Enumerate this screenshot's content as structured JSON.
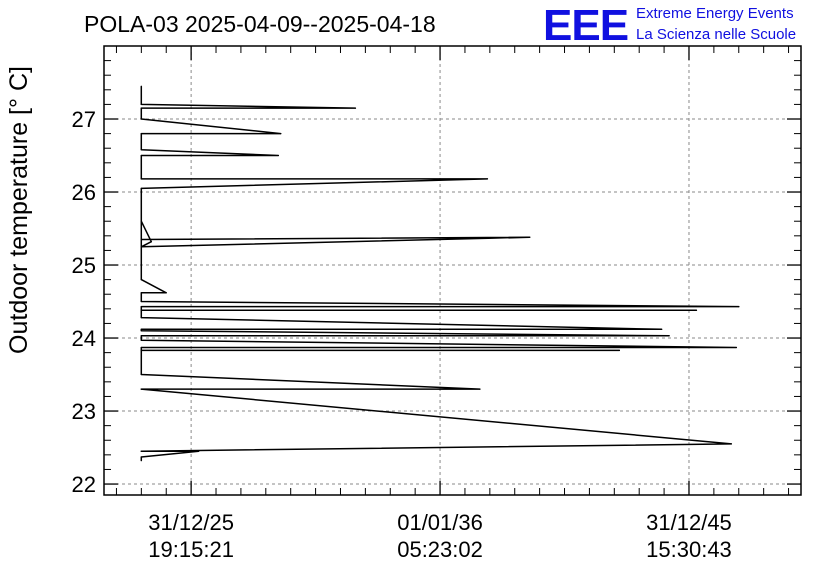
{
  "chart_data": {
    "type": "line",
    "title": "POLA-03 2025-04-09--2025-04-18",
    "xlabel": "",
    "ylabel": "Outdoor temperature [° C]",
    "ylim": [
      21.85,
      28.0
    ],
    "xlim": [
      -1.5,
      26.5
    ],
    "y_ticks": [
      22,
      23,
      24,
      25,
      26,
      27
    ],
    "y_tick_labels": [
      "22",
      "23",
      "24",
      "25",
      "26",
      "27"
    ],
    "x_ticks": [
      2,
      12,
      22
    ],
    "x_tick_labels": [
      [
        "31/12/25",
        "19:15:21"
      ],
      [
        "01/01/36",
        "05:23:02"
      ],
      [
        "31/12/45",
        "15:30:43"
      ]
    ],
    "grid": true,
    "series": [
      {
        "color": "#000000",
        "x": [
          0,
          0,
          0,
          8.6,
          0,
          0,
          5.6,
          0,
          0,
          5.5,
          0,
          0,
          13.9,
          0,
          0,
          15.6,
          0,
          0.4,
          0,
          0,
          1.0,
          0,
          0,
          24.0,
          0,
          0,
          22.3,
          0,
          0,
          20.9,
          0,
          0,
          21.2,
          0,
          0,
          23.9,
          0,
          0,
          19.2,
          0,
          0,
          13.6,
          0,
          0,
          23.7,
          0,
          0,
          2.3,
          0,
          0
        ],
        "y": [
          27.45,
          27.2,
          27.2,
          27.15,
          27.15,
          27.0,
          26.8,
          26.8,
          26.58,
          26.5,
          26.5,
          26.18,
          26.18,
          26.05,
          25.35,
          25.38,
          25.25,
          25.32,
          25.6,
          24.8,
          24.62,
          24.62,
          24.5,
          24.43,
          24.43,
          24.38,
          24.38,
          24.38,
          24.28,
          24.12,
          24.12,
          24.1,
          24.03,
          24.03,
          23.97,
          23.87,
          23.87,
          23.83,
          23.83,
          23.83,
          23.5,
          23.3,
          23.3,
          23.3,
          22.55,
          22.45,
          22.45,
          22.45,
          22.37,
          22.32
        ]
      }
    ]
  },
  "logo": {
    "mark": "EEE",
    "line1": "Extreme Energy Events",
    "line2": "La Scienza nelle Scuole",
    "color": "#1010e0"
  }
}
